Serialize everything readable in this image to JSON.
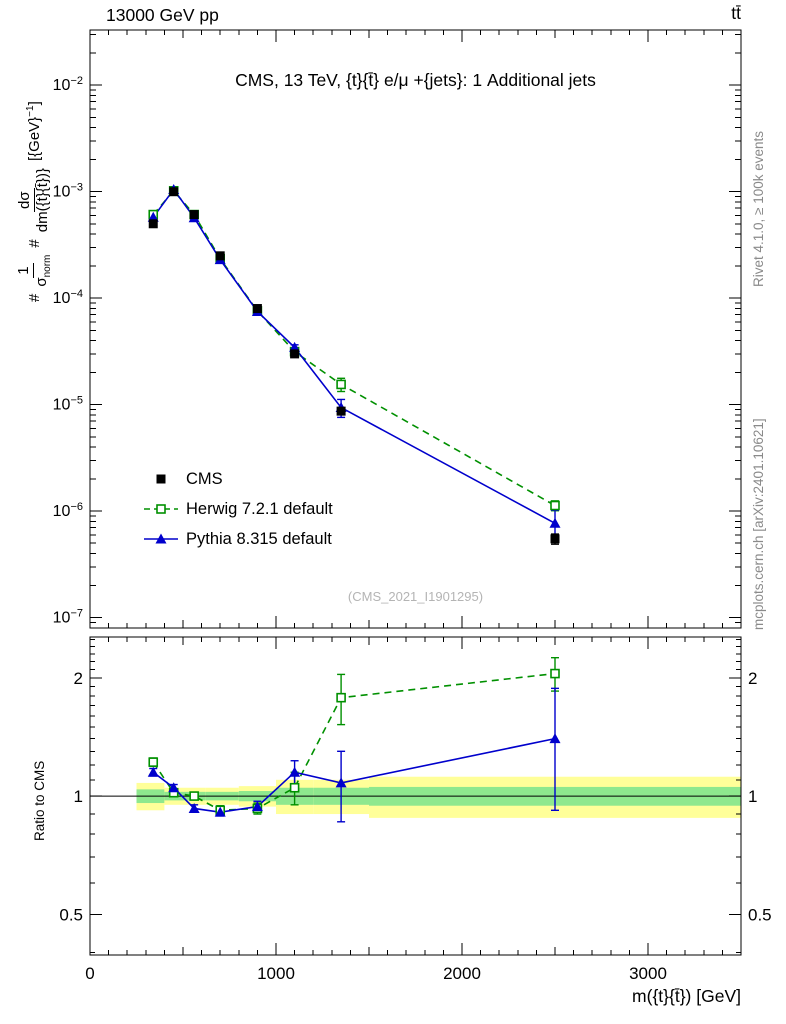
{
  "header": {
    "left": "13000 GeV pp",
    "right": "tt̄"
  },
  "panel_title": "CMS, 13 TeV, {t}{t̄} e/μ +{jets}: 1 Additional jets",
  "watermark": "(CMS_2021_I1901295)",
  "side_notes": {
    "top": "Rivet 4.1.0, ≥ 100k events",
    "bottom": "mcplots.cern.ch [arXiv:2401.10621]"
  },
  "ylabel": {
    "h1": "#",
    "f1n": "1",
    "f1d": "σ",
    "f1dsub": "norm",
    "h2": "#",
    "f2n": "dσ",
    "f2d": "dm({t}{t̄})}",
    "u1": "[{GeV}",
    "uexp": "−1",
    "u2": "]"
  },
  "ratio_ylabel": "Ratio to CMS",
  "xlabel": "m({t}{t̄}) [GeV]",
  "legend": [
    {
      "label": "CMS",
      "marker": "square-filled",
      "color": "#000000",
      "line": "none"
    },
    {
      "label": "Herwig 7.2.1 default",
      "marker": "square-open",
      "color": "#009000",
      "line": "dashed"
    },
    {
      "label": "Pythia 8.315 default",
      "marker": "triangle-filled",
      "color": "#0000cc",
      "line": "solid"
    }
  ],
  "chart_data": {
    "type": "line",
    "title": "CMS, 13 TeV, {t}{t̄} e/μ +{jets}: 1 Additional jets",
    "xlabel": "m({t}{t̄}) [GeV]",
    "ylabel": "#1/σ_norm # dσ/dm({t}{t̄})} [{GeV}^-1]",
    "ratio_ylabel": "Ratio to CMS",
    "x": [
      340,
      450,
      560,
      700,
      900,
      1100,
      1350,
      2500
    ],
    "bin_edges": [
      250,
      400,
      500,
      620,
      800,
      1000,
      1200,
      1500,
      3500
    ],
    "main": {
      "ylog": true,
      "ylim": [
        8e-08,
        0.033
      ],
      "xlim": [
        0,
        3500
      ],
      "xmajor": 1000,
      "xminor": 100,
      "ytick_exponents": [
        -7,
        -6,
        -5,
        -4,
        -3,
        -2
      ],
      "xticks": [
        0,
        1000,
        2000,
        3000
      ],
      "series": [
        {
          "name": "Herwig 7.2.1 default",
          "color": "#009000",
          "marker": "square-open",
          "line": "dashed",
          "values": [
            0.00061,
            0.00102,
            0.00061,
            0.000235,
            7.6e-05,
            3.15e-05,
            1.55e-05,
            1.13e-06
          ],
          "yerr": [
            1.2e-05,
            1.5e-05,
            1e-05,
            5e-06,
            2e-06,
            2.5e-06,
            2.2e-06,
            1.2e-07
          ]
        },
        {
          "name": "Pythia 8.315 default",
          "color": "#0000cc",
          "marker": "triangle-filled",
          "line": "solid",
          "values": [
            0.000575,
            0.00105,
            0.00057,
            0.00023,
            7.5e-05,
            3.45e-05,
            9.4e-06,
            7.7e-07
          ],
          "yerr": [
            1e-05,
            1.5e-05,
            1e-05,
            5e-06,
            2e-06,
            2e-06,
            1.8e-06,
            2.5e-07
          ]
        },
        {
          "name": "CMS",
          "color": "#000000",
          "marker": "square-filled",
          "line": "none",
          "values": [
            0.0005,
            0.001,
            0.00061,
            0.00025,
            8e-05,
            3e-05,
            8.7e-06,
            5.5e-07
          ],
          "yerr": [
            1.5e-05,
            2e-05,
            1.2e-05,
            6e-06,
            2.4e-06,
            1.2e-06,
            4e-07,
            6e-08
          ]
        }
      ]
    },
    "ratio": {
      "ylog": true,
      "ylim": [
        0.394,
        2.54
      ],
      "yticks": [
        0.5,
        1,
        2
      ],
      "bands": {
        "yellow_color": "#ffff99",
        "green_color": "#8ee88e",
        "yellow_half": [
          0.08,
          0.05,
          0.05,
          0.05,
          0.06,
          0.1,
          0.1,
          0.12
        ],
        "green_half": [
          0.04,
          0.025,
          0.025,
          0.025,
          0.03,
          0.05,
          0.05,
          0.055
        ]
      },
      "series": [
        {
          "name": "Herwig 7.2.1 default",
          "color": "#009000",
          "marker": "square-open",
          "line": "dashed",
          "values": [
            1.22,
            1.02,
            1.0,
            0.92,
            0.93,
            1.05,
            1.78,
            2.05
          ],
          "yerr": [
            0.03,
            0.02,
            0.02,
            0.025,
            0.03,
            0.1,
            0.26,
            0.2
          ]
        },
        {
          "name": "Pythia 8.315 default",
          "color": "#0000cc",
          "marker": "triangle-filled",
          "line": "solid",
          "values": [
            1.15,
            1.05,
            0.93,
            0.91,
            0.94,
            1.15,
            1.08,
            1.4
          ],
          "yerr": [
            0.025,
            0.02,
            0.02,
            0.02,
            0.03,
            0.08,
            0.22,
            0.48
          ]
        }
      ]
    }
  }
}
